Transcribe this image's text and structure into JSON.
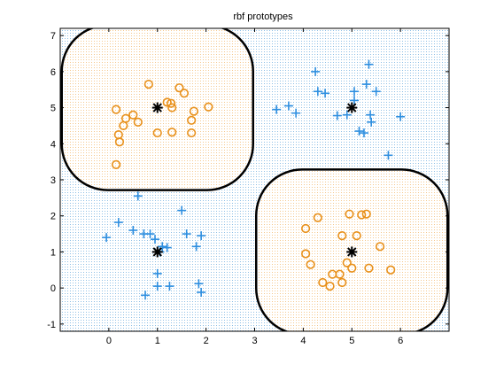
{
  "chart_data": {
    "type": "scatter",
    "title": "rbf prototypes",
    "xlabel": "",
    "ylabel": "",
    "xlim": [
      -1,
      7
    ],
    "ylim": [
      -1.2,
      7.2
    ],
    "xticks": [
      0,
      1,
      2,
      3,
      4,
      5,
      6
    ],
    "yticks": [
      -1,
      0,
      1,
      2,
      3,
      4,
      5,
      6,
      7
    ],
    "grid": false,
    "legend": "none",
    "colors": {
      "class_o": "#e8901a",
      "class_plus": "#2f8fe0",
      "region_o_fill": "#f5c98f",
      "region_plus_fill": "#8fc0e6",
      "boundary": "#000000",
      "prototype": "#000000"
    },
    "series": [
      {
        "marker": "circle",
        "points": [
          [
            0.15,
            4.95
          ],
          [
            0.35,
            4.7
          ],
          [
            0.5,
            4.8
          ],
          [
            0.6,
            4.6
          ],
          [
            0.3,
            4.5
          ],
          [
            0.2,
            4.25
          ],
          [
            0.22,
            4.05
          ],
          [
            0.15,
            3.42
          ],
          [
            0.82,
            5.65
          ],
          [
            1.0,
            4.3
          ],
          [
            1.2,
            5.15
          ],
          [
            1.28,
            5.12
          ],
          [
            1.3,
            5.0
          ],
          [
            1.45,
            5.55
          ],
          [
            1.55,
            5.4
          ],
          [
            1.7,
            4.65
          ],
          [
            1.75,
            4.9
          ],
          [
            1.7,
            4.3
          ],
          [
            1.3,
            4.32
          ],
          [
            2.05,
            5.02
          ],
          [
            4.05,
            1.65
          ],
          [
            4.05,
            0.95
          ],
          [
            4.15,
            0.65
          ],
          [
            4.3,
            1.95
          ],
          [
            4.4,
            0.15
          ],
          [
            4.55,
            0.05
          ],
          [
            4.6,
            0.38
          ],
          [
            4.75,
            0.38
          ],
          [
            4.8,
            1.45
          ],
          [
            4.8,
            0.15
          ],
          [
            4.9,
            0.7
          ],
          [
            4.95,
            2.05
          ],
          [
            5.0,
            0.55
          ],
          [
            5.1,
            1.45
          ],
          [
            5.2,
            2.03
          ],
          [
            5.3,
            2.05
          ],
          [
            5.35,
            0.55
          ],
          [
            5.58,
            1.15
          ],
          [
            5.8,
            0.5
          ]
        ]
      },
      {
        "marker": "plus",
        "points": [
          [
            -0.05,
            1.4
          ],
          [
            0.2,
            1.82
          ],
          [
            0.5,
            1.6
          ],
          [
            0.6,
            2.55
          ],
          [
            0.72,
            1.5
          ],
          [
            0.85,
            1.5
          ],
          [
            0.95,
            1.35
          ],
          [
            1.0,
            0.4
          ],
          [
            1.05,
            1.0
          ],
          [
            1.1,
            1.15
          ],
          [
            1.2,
            1.12
          ],
          [
            1.25,
            0.05
          ],
          [
            1.5,
            2.15
          ],
          [
            1.6,
            1.5
          ],
          [
            1.8,
            1.15
          ],
          [
            1.85,
            0.12
          ],
          [
            1.9,
            1.45
          ],
          [
            1.9,
            -0.12
          ],
          [
            1.0,
            0.05
          ],
          [
            0.75,
            -0.2
          ],
          [
            3.45,
            4.95
          ],
          [
            3.7,
            5.05
          ],
          [
            3.85,
            4.85
          ],
          [
            4.25,
            6.0
          ],
          [
            4.3,
            5.45
          ],
          [
            4.45,
            5.4
          ],
          [
            4.7,
            4.78
          ],
          [
            4.9,
            4.8
          ],
          [
            5.05,
            5.45
          ],
          [
            5.05,
            5.2
          ],
          [
            5.15,
            4.35
          ],
          [
            5.25,
            4.3
          ],
          [
            5.3,
            5.65
          ],
          [
            5.35,
            6.2
          ],
          [
            5.38,
            4.8
          ],
          [
            5.4,
            4.6
          ],
          [
            5.5,
            5.45
          ],
          [
            5.75,
            3.68
          ],
          [
            6.0,
            4.75
          ]
        ]
      },
      {
        "marker": "asterisk",
        "points": [
          [
            1,
            5
          ],
          [
            5,
            5
          ],
          [
            1,
            1
          ],
          [
            5,
            1
          ]
        ]
      }
    ],
    "decision_regions": [
      {
        "class": "circle",
        "center": [
          1,
          5
        ]
      },
      {
        "class": "circle",
        "center": [
          5,
          1
        ]
      }
    ]
  }
}
